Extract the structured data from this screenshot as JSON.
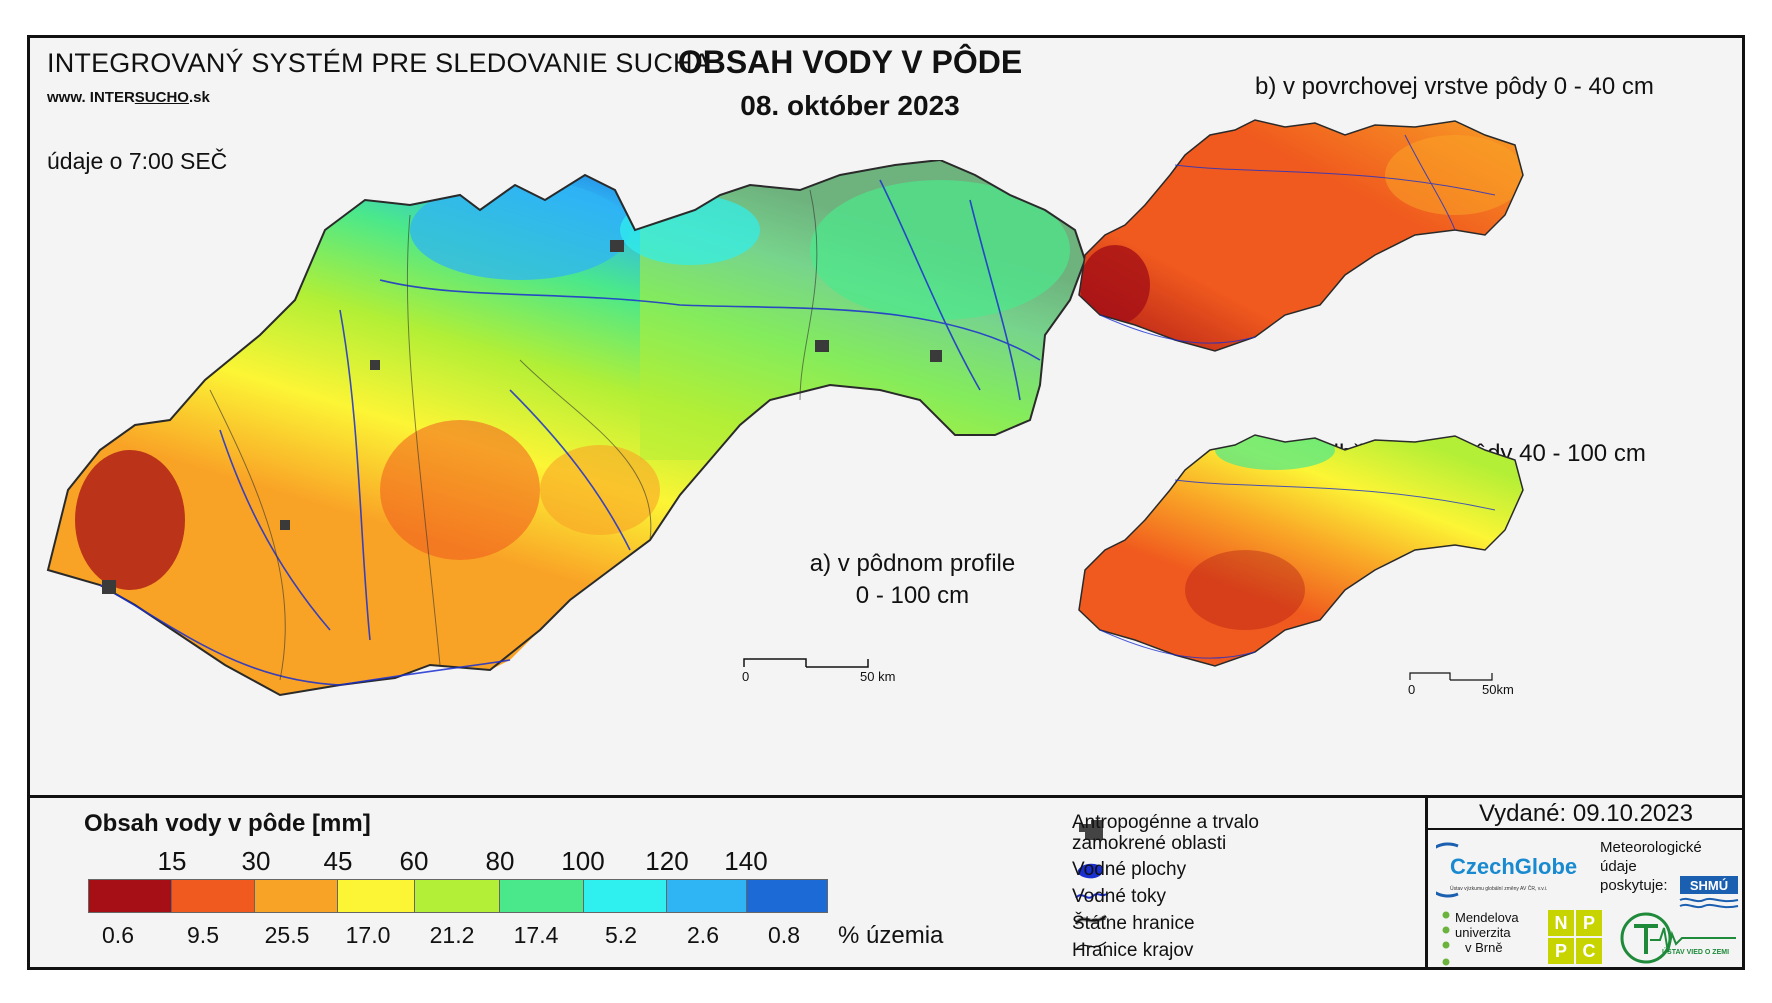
{
  "header": {
    "system_title": "INTEGROVANÝ SYSTÉM PRE SLEDOVANIE SUCHA",
    "url_prefix": "www. ",
    "url_inter": "INTER",
    "url_sucho": "SUCHO",
    "url_suffix": ".sk",
    "time_note": "údaje o 7:00 SEČ",
    "main_title": "OBSAH VODY V PÔDE",
    "date": "08. október 2023"
  },
  "maps": {
    "a_label_line1": "a) v pôdnom profile",
    "a_label_line2": "0 - 100 cm",
    "b_label": "b) v povrchovej vrstve pôdy 0 - 40 cm",
    "c_label": "c) v hlbšej vrstve pôdy 40 - 100 cm",
    "scale_main_zero": "0",
    "scale_main_end": "50 km",
    "scale_small_zero": "0",
    "scale_small_end": "50km"
  },
  "legend": {
    "title": "Obsah vody v pôde  [mm]",
    "thresholds": [
      "15",
      "30",
      "45",
      "60",
      "80",
      "100",
      "120",
      "140"
    ],
    "colors": [
      "#a50f15",
      "#f05a1e",
      "#f9a326",
      "#fcf535",
      "#b2ef36",
      "#4be88b",
      "#2ff0ee",
      "#2fb4f4",
      "#1c6ad6"
    ],
    "percentages": [
      "0.6",
      "9.5",
      "25.5",
      "17.0",
      "21.2",
      "17.4",
      "5.2",
      "2.6",
      "0.8"
    ],
    "pct_label": "% územia"
  },
  "symbols": {
    "anthro_line1": "Antropogénne a trvalo",
    "anthro_line2": "zamokrené oblasti",
    "water_bodies": "Vodné plochy",
    "streams": "Vodné toky",
    "state_border": "Štátne hranice",
    "region_border": "Hranice krajov"
  },
  "credits": {
    "issued": "Vydané: 09.10.2023",
    "czechglobe": "CzechGlobe",
    "czechglobe_sub": "Ústav výzkumu globální změny AV ČR, v.v.i.",
    "meteo_line1": "Meteorologické",
    "meteo_line2": "údaje",
    "meteo_line3": "poskytuje:",
    "shmu": "SHMÚ",
    "mendel_line1": "Mendelova",
    "mendel_line2": "univerzita",
    "mendel_line3": "v Brně",
    "npp": [
      "N",
      "P",
      "P",
      "C"
    ],
    "uvz": "ÚSTAV VIED O ZEMI"
  }
}
